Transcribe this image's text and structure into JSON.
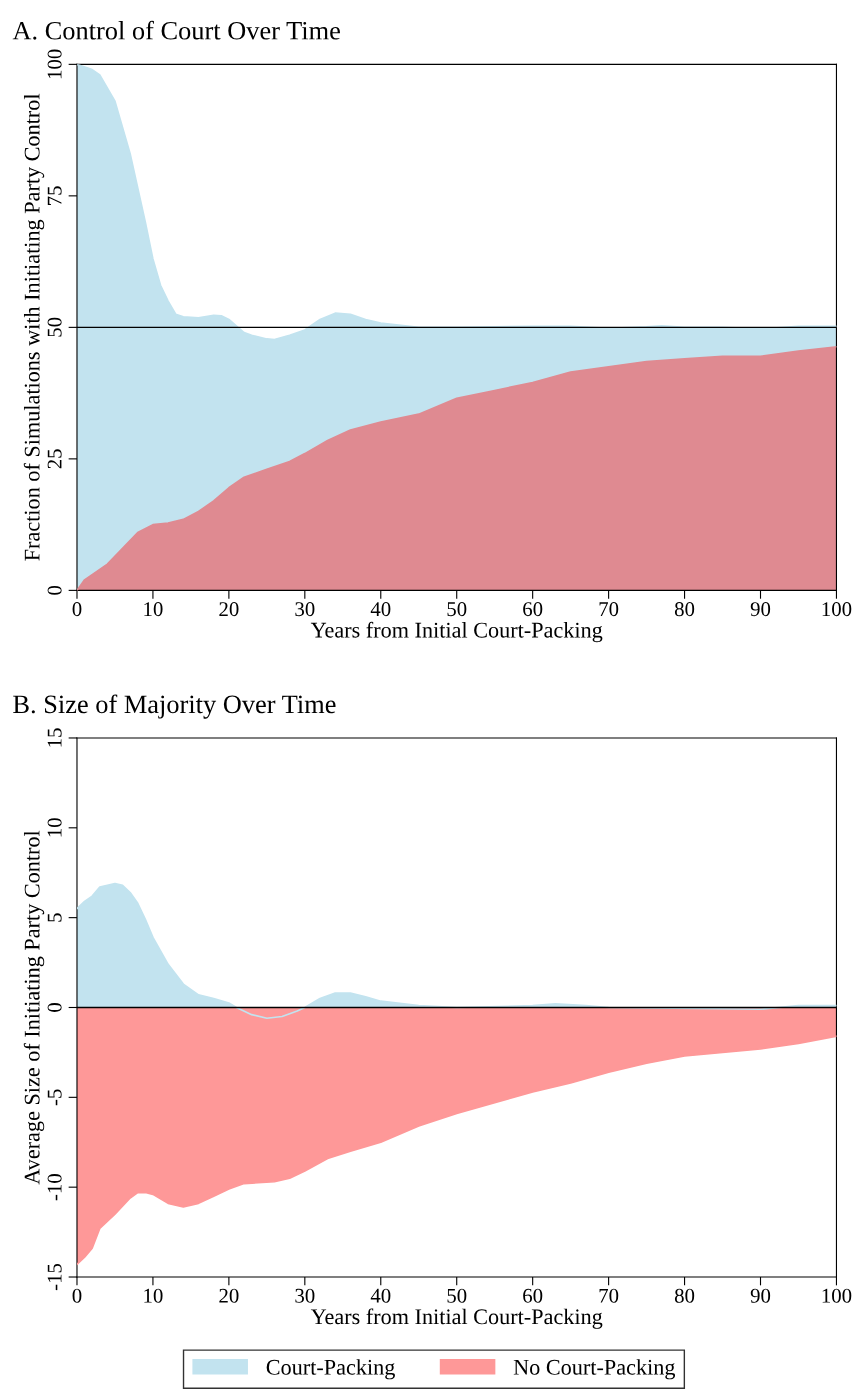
{
  "chart_data": [
    {
      "type": "area",
      "title": "A. Control of Court Over Time",
      "xlabel": "Years from Initial Court-Packing",
      "ylabel": "Fraction of Simulations with Initiating Party Control",
      "xlim": [
        0,
        100
      ],
      "xticks": [
        0,
        10,
        20,
        30,
        40,
        50,
        60,
        70,
        80,
        90,
        100
      ],
      "ylim": [
        0,
        100
      ],
      "yticks": [
        0,
        25,
        50,
        75,
        100
      ],
      "grid": false,
      "legend": false,
      "ref_lines": [
        {
          "axis": "y",
          "value": 50,
          "color": "#000000"
        }
      ],
      "series": [
        {
          "color": "#c2e3ef",
          "x": [
            0,
            2,
            3,
            5,
            7,
            9,
            10,
            11,
            12,
            13,
            14,
            16,
            18,
            19,
            20,
            22,
            23,
            25,
            26,
            28,
            30,
            32,
            34,
            36,
            38,
            40,
            45,
            50,
            55,
            60,
            65,
            70,
            75,
            77,
            80,
            85,
            90,
            95,
            100
          ],
          "values": [
            100,
            99,
            98,
            93,
            83,
            70,
            63,
            58,
            55,
            52.5,
            52,
            51.8,
            52.3,
            52.2,
            51.5,
            49,
            48.5,
            47.8,
            47.7,
            48.5,
            49.5,
            51.5,
            52.7,
            52.5,
            51.5,
            50.8,
            50,
            50,
            50.1,
            50.2,
            50.2,
            49.8,
            50.1,
            50.3,
            50,
            50,
            49.7,
            50.2,
            50.2
          ]
        },
        {
          "color": "#df8a91",
          "x": [
            0,
            1,
            2,
            4,
            6,
            8,
            10,
            12,
            14,
            16,
            18,
            20,
            22,
            25,
            28,
            30,
            33,
            36,
            40,
            45,
            50,
            55,
            60,
            65,
            70,
            75,
            80,
            85,
            90,
            95,
            100
          ],
          "values": [
            0,
            2,
            3,
            5,
            8,
            11,
            12.5,
            12.8,
            13.5,
            15,
            17,
            19.5,
            21.5,
            23,
            24.5,
            26,
            28.5,
            30.5,
            32,
            33.5,
            36.5,
            38,
            39.5,
            41.5,
            42.5,
            43.5,
            44,
            44.5,
            44.5,
            45.5,
            46.3
          ]
        }
      ]
    },
    {
      "type": "area",
      "title": "B. Size of Majority Over Time",
      "xlabel": "Years from Initial Court-Packing",
      "ylabel": "Average Size of Initiating Party Control",
      "xlim": [
        0,
        100
      ],
      "xticks": [
        0,
        10,
        20,
        30,
        40,
        50,
        60,
        70,
        80,
        90,
        100
      ],
      "ylim": [
        -15,
        15
      ],
      "yticks": [
        {
          "value": -15,
          "label": "-15"
        },
        {
          "value": -10,
          "label": "-10"
        },
        {
          "value": -5,
          "label": "-5"
        },
        0,
        5,
        10,
        15
      ],
      "grid": false,
      "legend": "bottom",
      "ref_lines": [
        {
          "axis": "y",
          "value": 0,
          "color": "#000000"
        }
      ],
      "series": [
        {
          "name": "Court-Packing",
          "color": "#c2e3ef",
          "x": [
            0,
            1,
            2,
            3,
            5,
            6,
            7,
            8,
            9,
            10,
            12,
            14,
            16,
            18,
            20,
            21,
            23,
            25,
            27,
            29,
            30,
            32,
            34,
            36,
            38,
            40,
            45,
            50,
            60,
            63,
            67,
            70,
            90,
            95,
            100
          ],
          "values": [
            5.5,
            5.9,
            6.2,
            6.7,
            6.9,
            6.8,
            6.4,
            5.8,
            4.9,
            3.9,
            2.4,
            1.3,
            0.7,
            0.5,
            0.25,
            0,
            -0.4,
            -0.6,
            -0.5,
            -0.2,
            0,
            0.5,
            0.8,
            0.8,
            0.6,
            0.35,
            0.1,
            0,
            0.1,
            0.2,
            0.1,
            0,
            -0.1,
            0.1,
            0.1
          ]
        },
        {
          "name": "No Court-Packing",
          "color": "#fe9898",
          "x": [
            0,
            1,
            2,
            3,
            5,
            7,
            8,
            9,
            10,
            12,
            14,
            16,
            18,
            20,
            22,
            26,
            28,
            30,
            33,
            36,
            40,
            45,
            50,
            55,
            60,
            65,
            70,
            75,
            80,
            85,
            90,
            95,
            100
          ],
          "values": [
            -14.3,
            -13.9,
            -13.4,
            -12.3,
            -11.5,
            -10.6,
            -10.3,
            -10.3,
            -10.4,
            -10.9,
            -11.1,
            -10.9,
            -10.5,
            -10.1,
            -9.8,
            -9.7,
            -9.5,
            -9.1,
            -8.4,
            -8,
            -7.5,
            -6.6,
            -5.9,
            -5.3,
            -4.7,
            -4.2,
            -3.6,
            -3.1,
            -2.7,
            -2.5,
            -2.3,
            -2,
            -1.6
          ]
        }
      ]
    }
  ]
}
